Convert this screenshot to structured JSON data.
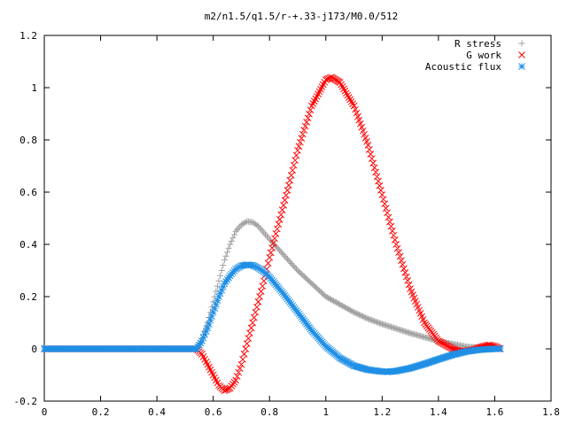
{
  "chart_data": {
    "type": "scatter",
    "title": "m2/n1.5/q1.5/r-+.33-j173/M0.0/512",
    "xlabel": "",
    "ylabel": "",
    "xlim": [
      0,
      1.8
    ],
    "ylim": [
      -0.2,
      1.2
    ],
    "x_ticks": [
      "0",
      "0.2",
      "0.4",
      "0.6",
      "0.8",
      "1",
      "1.2",
      "1.4",
      "1.6",
      "1.8"
    ],
    "y_ticks": [
      "-0.2",
      "0",
      "0.2",
      "0.4",
      "0.6",
      "0.8",
      "1",
      "1.2"
    ],
    "grid": false,
    "legend_position": "top-right",
    "series": [
      {
        "name": "R stress",
        "marker": "plus",
        "color": "#a0a0a0",
        "x": [
          0,
          0.2,
          0.4,
          0.54,
          0.56,
          0.58,
          0.6,
          0.62,
          0.64,
          0.66,
          0.68,
          0.7,
          0.72,
          0.74,
          0.76,
          0.78,
          0.8,
          0.85,
          0.9,
          0.95,
          1.0,
          1.05,
          1.1,
          1.15,
          1.2,
          1.3,
          1.4,
          1.5,
          1.6,
          1.62
        ],
        "y": [
          0,
          0,
          0,
          0,
          0.04,
          0.1,
          0.18,
          0.26,
          0.34,
          0.4,
          0.45,
          0.475,
          0.488,
          0.485,
          0.47,
          0.445,
          0.42,
          0.36,
          0.3,
          0.25,
          0.2,
          0.17,
          0.14,
          0.115,
          0.095,
          0.06,
          0.03,
          0.008,
          0.002,
          0
        ]
      },
      {
        "name": "G work",
        "marker": "cross",
        "color": "#ff0000",
        "x": [
          0,
          0.2,
          0.4,
          0.54,
          0.56,
          0.58,
          0.6,
          0.62,
          0.64,
          0.66,
          0.68,
          0.7,
          0.72,
          0.74,
          0.76,
          0.78,
          0.8,
          0.85,
          0.9,
          0.95,
          1.0,
          1.02,
          1.05,
          1.1,
          1.15,
          1.2,
          1.25,
          1.3,
          1.35,
          1.4,
          1.45,
          1.48,
          1.52,
          1.56,
          1.58,
          1.6,
          1.62
        ],
        "y": [
          0,
          0,
          0,
          0,
          -0.02,
          -0.06,
          -0.1,
          -0.14,
          -0.16,
          -0.15,
          -0.12,
          -0.06,
          0.02,
          0.1,
          0.18,
          0.26,
          0.35,
          0.55,
          0.76,
          0.93,
          1.03,
          1.04,
          1.02,
          0.93,
          0.78,
          0.59,
          0.4,
          0.23,
          0.1,
          0.03,
          0.0,
          -0.01,
          -0.005,
          0.01,
          0.015,
          0.01,
          0
        ]
      },
      {
        "name": "Acoustic flux",
        "marker": "star",
        "color": "#1f8fe6",
        "x": [
          0,
          0.2,
          0.4,
          0.54,
          0.56,
          0.58,
          0.6,
          0.62,
          0.64,
          0.66,
          0.68,
          0.7,
          0.72,
          0.74,
          0.76,
          0.78,
          0.8,
          0.85,
          0.9,
          0.95,
          1.0,
          1.05,
          1.1,
          1.15,
          1.2,
          1.22,
          1.25,
          1.3,
          1.35,
          1.4,
          1.45,
          1.5,
          1.55,
          1.6,
          1.62
        ],
        "y": [
          0,
          0,
          0,
          0,
          0.03,
          0.08,
          0.14,
          0.2,
          0.25,
          0.28,
          0.305,
          0.318,
          0.322,
          0.32,
          0.31,
          0.295,
          0.275,
          0.21,
          0.14,
          0.07,
          0.01,
          -0.035,
          -0.065,
          -0.08,
          -0.087,
          -0.088,
          -0.085,
          -0.074,
          -0.058,
          -0.04,
          -0.023,
          -0.01,
          -0.003,
          0,
          0
        ]
      }
    ]
  }
}
